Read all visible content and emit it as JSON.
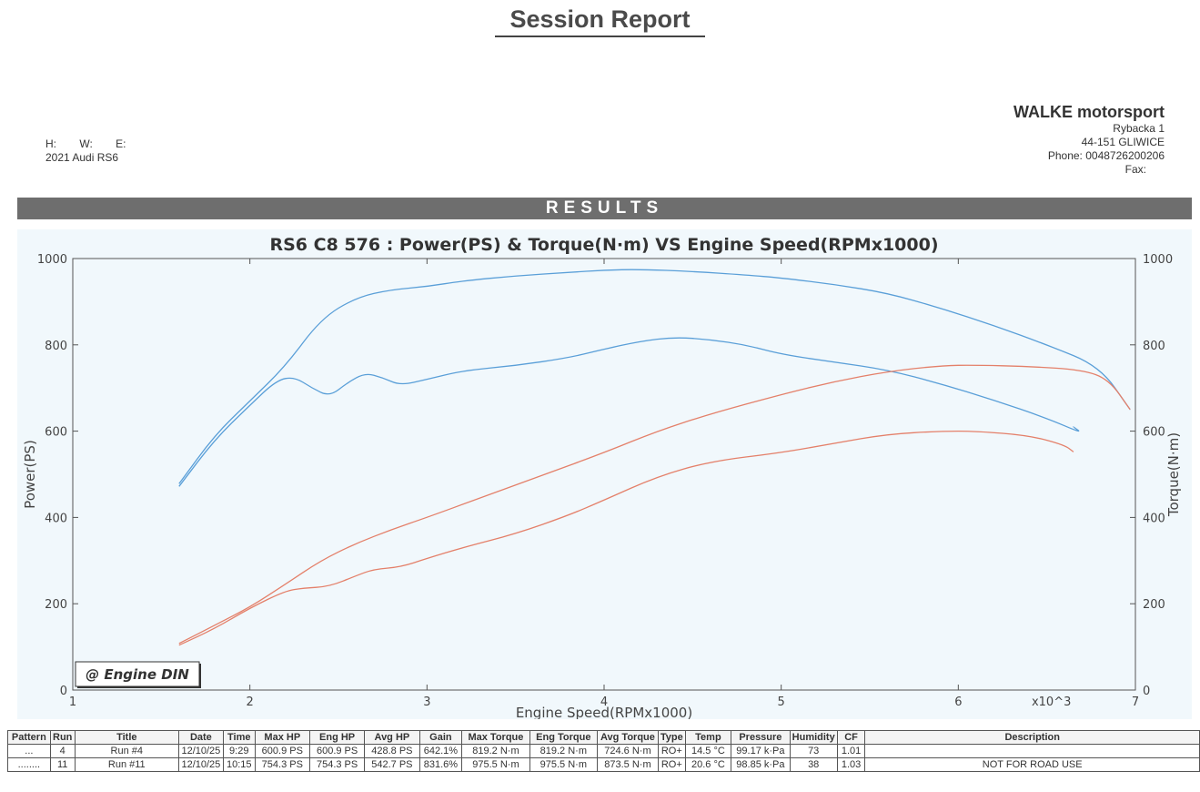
{
  "report": {
    "title": "Session Report"
  },
  "vehicle": {
    "h_label": "H:",
    "w_label": "W:",
    "e_label": "E:",
    "name": "2021 Audi RS6"
  },
  "company": {
    "name": "WALKE motorsport",
    "street": "Rybacka 1",
    "city": "44-151 GLIWICE",
    "phone": "Phone: 0048726200206",
    "fax": "Fax:"
  },
  "results_bar": "RESULTS",
  "chart_data": {
    "type": "line",
    "title": "RS6 C8 576 : Power(PS) & Torque(N·m) VS Engine Speed(RPMx1000)",
    "xlabel": "Engine Speed(RPMx1000)",
    "x_multiplier_label": "x10^3",
    "ylabel_left": "Power(PS)",
    "ylabel_right": "Torque(N·m)",
    "xlim": [
      1,
      7
    ],
    "ylim": [
      0,
      1000
    ],
    "x_ticks": [
      "1",
      "2",
      "3",
      "4",
      "5",
      "6",
      "7"
    ],
    "y_ticks": [
      "0",
      "200",
      "400",
      "600",
      "800",
      "1000"
    ],
    "grid": false,
    "watermark": "@ Engine DIN",
    "colors": {
      "torque": "#5a9fd8",
      "power": "#e4806a"
    },
    "series": [
      {
        "kind": "torque",
        "run": "11",
        "x": [
          1.6,
          1.8,
          2.0,
          2.2,
          2.4,
          2.6,
          2.8,
          3.0,
          3.2,
          3.5,
          3.8,
          4.0,
          4.2,
          4.5,
          4.8,
          5.0,
          5.3,
          5.6,
          5.9,
          6.2,
          6.5,
          6.8,
          6.97
        ],
        "y": [
          478,
          590,
          670,
          750,
          860,
          910,
          928,
          935,
          948,
          960,
          968,
          973,
          975,
          970,
          962,
          955,
          940,
          920,
          885,
          845,
          800,
          750,
          650
        ]
      },
      {
        "kind": "torque",
        "run": "4",
        "x": [
          1.6,
          1.8,
          2.0,
          2.15,
          2.25,
          2.35,
          2.45,
          2.55,
          2.65,
          2.75,
          2.85,
          3.0,
          3.2,
          3.5,
          3.8,
          4.0,
          4.2,
          4.4,
          4.6,
          4.8,
          5.0,
          5.3,
          5.6,
          5.9,
          6.2,
          6.5,
          6.7,
          6.65
        ],
        "y": [
          472,
          580,
          660,
          718,
          726,
          700,
          680,
          712,
          735,
          724,
          706,
          720,
          740,
          752,
          770,
          790,
          808,
          818,
          812,
          800,
          778,
          760,
          742,
          710,
          672,
          630,
          595,
          610
        ]
      },
      {
        "kind": "power",
        "run": "11",
        "x": [
          1.6,
          1.8,
          2.0,
          2.2,
          2.4,
          2.6,
          2.8,
          3.0,
          3.3,
          3.6,
          4.0,
          4.3,
          4.6,
          5.0,
          5.3,
          5.6,
          5.9,
          6.1,
          6.4,
          6.7,
          6.85,
          6.97
        ],
        "y": [
          108,
          150,
          192,
          245,
          300,
          340,
          372,
          400,
          445,
          490,
          550,
          600,
          640,
          685,
          715,
          738,
          752,
          753,
          750,
          742,
          720,
          650
        ]
      },
      {
        "kind": "power",
        "run": "4",
        "x": [
          1.6,
          1.8,
          2.0,
          2.2,
          2.3,
          2.45,
          2.6,
          2.7,
          2.85,
          3.0,
          3.2,
          3.5,
          3.8,
          4.0,
          4.3,
          4.6,
          5.0,
          5.3,
          5.6,
          5.9,
          6.1,
          6.4,
          6.6,
          6.65
        ],
        "y": [
          104,
          142,
          190,
          230,
          236,
          240,
          265,
          280,
          285,
          305,
          330,
          362,
          405,
          440,
          495,
          530,
          550,
          572,
          593,
          600,
          600,
          590,
          568,
          552
        ]
      }
    ]
  },
  "table": {
    "headers": [
      "Pattern",
      "Run",
      "Title",
      "Date",
      "Time",
      "Max HP",
      "Eng HP",
      "Avg HP",
      "Gain",
      "Max Torque",
      "Eng Torque",
      "Avg Torque",
      "Type",
      "Temp",
      "Pressure",
      "Humidity",
      "CF",
      "Description"
    ],
    "rows": [
      [
        "...",
        "4",
        "Run #4",
        "12/10/25",
        "9:29",
        "600.9 PS",
        "600.9 PS",
        "428.8 PS",
        "642.1%",
        "819.2 N·m",
        "819.2 N·m",
        "724.6 N·m",
        "RO+",
        "14.5 °C",
        "99.17 k·Pa",
        "73",
        "1.01",
        ""
      ],
      [
        "........",
        "11",
        "Run #11",
        "12/10/25",
        "10:15",
        "754.3 PS",
        "754.3 PS",
        "542.7 PS",
        "831.6%",
        "975.5 N·m",
        "975.5 N·m",
        "873.5 N·m",
        "RO+",
        "20.6 °C",
        "98.85 k·Pa",
        "38",
        "1.03",
        "NOT FOR ROAD USE"
      ]
    ]
  }
}
